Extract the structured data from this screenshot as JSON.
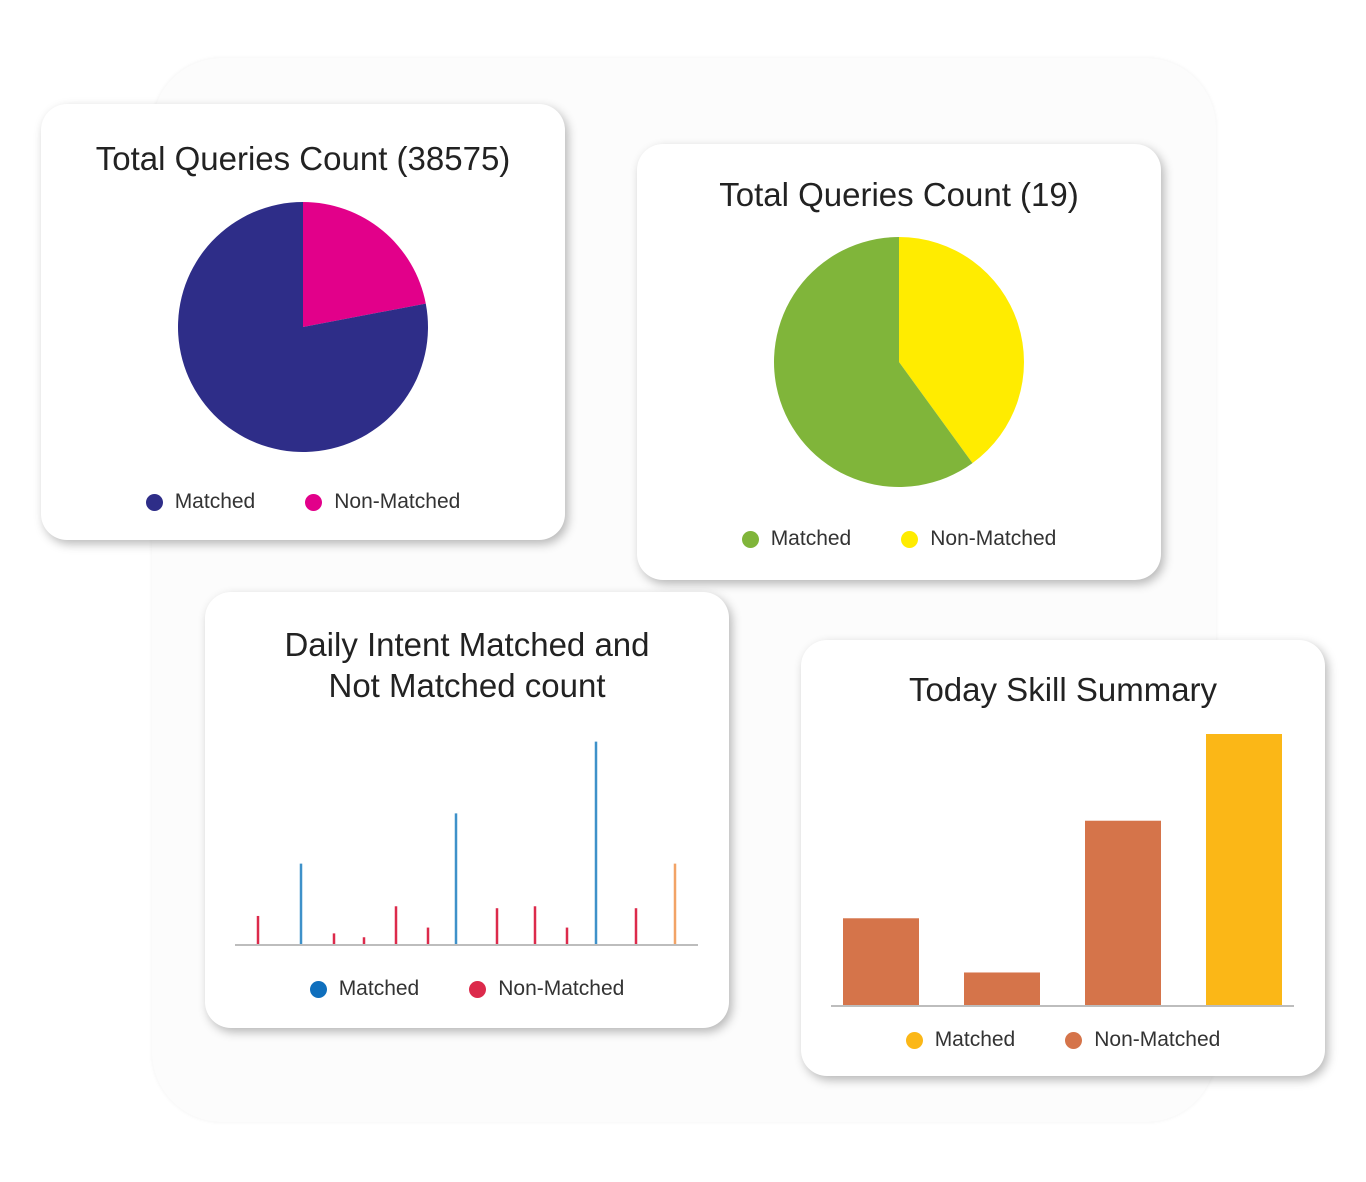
{
  "chart_data": [
    {
      "type": "pie",
      "title": "Total Queries Count (38575)",
      "slices": [
        {
          "label": "Matched",
          "value": 78,
          "color": "#2e2d88"
        },
        {
          "label": "Non-Matched",
          "value": 22,
          "color": "#e2008a"
        }
      ],
      "legend": [
        {
          "label": "Matched",
          "color": "#2e2d88"
        },
        {
          "label": "Non-Matched",
          "color": "#e2008a"
        }
      ],
      "legend_placement": "bottom"
    },
    {
      "type": "pie",
      "title": "Total Queries Count (19)",
      "slices": [
        {
          "label": "Matched",
          "value": 60,
          "color": "#80b53a"
        },
        {
          "label": "Non-Matched",
          "value": 40,
          "color": "#ffec00"
        }
      ],
      "legend": [
        {
          "label": "Matched",
          "color": "#80b53a"
        },
        {
          "label": "Non-Matched",
          "color": "#ffec00"
        }
      ],
      "legend_placement": "bottom"
    },
    {
      "type": "bar",
      "title_lines": [
        "Daily Intent Matched and",
        "Not Matched count"
      ],
      "values": [
        15,
        42,
        6,
        4,
        20,
        9,
        68,
        19,
        20,
        9,
        105,
        19,
        42
      ],
      "colors": [
        "#dc2a4b",
        "#3e91c9",
        "#dc2a4b",
        "#dc2a4b",
        "#dc2a4b",
        "#dc2a4b",
        "#3e91c9",
        "#dc2a4b",
        "#dc2a4b",
        "#dc2a4b",
        "#3e91c9",
        "#dc2a4b",
        "#f2a366"
      ],
      "ylim": [
        0,
        110
      ],
      "legend": [
        {
          "label": "Matched",
          "color": "#0f6fbd"
        },
        {
          "label": "Non-Matched",
          "color": "#dc2a4b"
        }
      ],
      "legend_placement": "bottom"
    },
    {
      "type": "bar",
      "title": "Today Skill Summary",
      "categories": [
        "",
        "",
        "",
        ""
      ],
      "values": [
        32,
        12,
        68,
        100
      ],
      "colors": [
        "#d5744a",
        "#d5744a",
        "#d5744a",
        "#fbb717"
      ],
      "ylim": [
        0,
        100
      ],
      "legend": [
        {
          "label": "Matched",
          "color": "#fbb717"
        },
        {
          "label": "Non-Matched",
          "color": "#d5744a"
        }
      ],
      "legend_placement": "bottom"
    }
  ]
}
